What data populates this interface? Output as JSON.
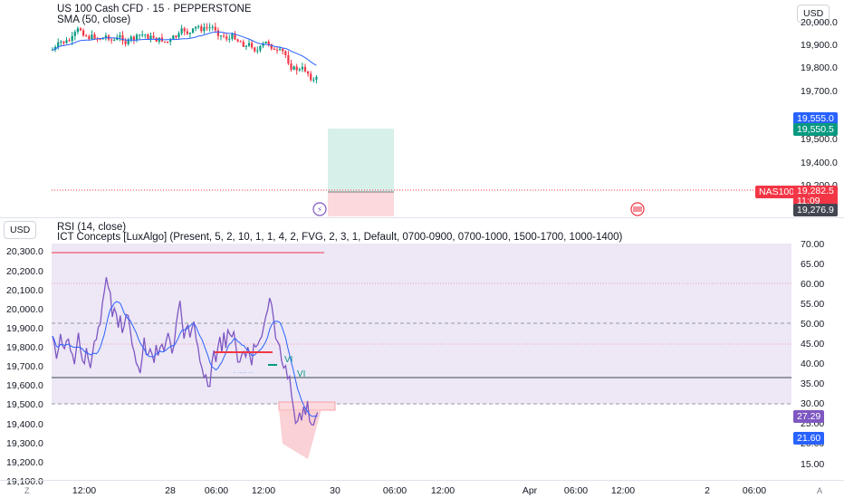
{
  "header": {
    "symbol_title": "US 100 Cash CFD · 15 · PEPPERSTONE",
    "sma_title": "SMA (50, close)",
    "currency_top": "USD",
    "currency_bottom": "USD"
  },
  "indicators": {
    "rsi_title": "RSI (14, close)",
    "ict_title": "ICT Concepts [LuxAlgo] (Present, 5, 2, 10, 1, 1, 4, 2, FVG, 2, 3, 1, Default, 0700-0900, 0700-1000, 1500-1700, 1000-1400)",
    "vi_label_1": "VI",
    "vi_label_2": "VI"
  },
  "price_axis_top": [
    "20,000.0",
    "19,900.0",
    "19,800.0",
    "19,700.0",
    "19,500.0",
    "19,400.0",
    "19,200.0"
  ],
  "price_tags": {
    "tp": "19,555.0",
    "entry": "19,550.5",
    "symbol": "NAS100",
    "current": "19,282.5",
    "countdown": "11:09",
    "low": "19,276.9"
  },
  "price_axis_left": [
    "20,300.0",
    "20,200.0",
    "20,100.0",
    "20,000.0",
    "19,900.0",
    "19,800.0",
    "19,700.0",
    "19,600.0",
    "19,500.0",
    "19,400.0",
    "19,300.0",
    "19,200.0",
    "19,100.0"
  ],
  "rsi_axis": [
    "70.00",
    "65.00",
    "60.00",
    "55.00",
    "50.00",
    "45.00",
    "40.00",
    "35.00",
    "30.00",
    "25.00",
    "20.00",
    "15.00"
  ],
  "rsi_tags": {
    "rsi": "27.29",
    "sma": "21.60"
  },
  "time_axis": [
    "12:00",
    "28",
    "06:00",
    "12:00",
    "30",
    "06:00",
    "12:00",
    "Apr",
    "06:00",
    "12:00",
    "2",
    "06:00"
  ],
  "corners": {
    "left": "Z",
    "right": "A"
  },
  "colors": {
    "up": "#089981",
    "down": "#f23645",
    "sma": "#2962ff",
    "rsi": "#7e57c2",
    "rsi_band": "#ede7f6",
    "tp_zone": "#d8f0ea",
    "sl_zone": "#fbd9dc",
    "rsi_tag": "#7e57c2",
    "blue_tag": "#2962ff",
    "green_tag": "#089981",
    "red_tag": "#f23645",
    "dark_tag": "#434651"
  }
}
